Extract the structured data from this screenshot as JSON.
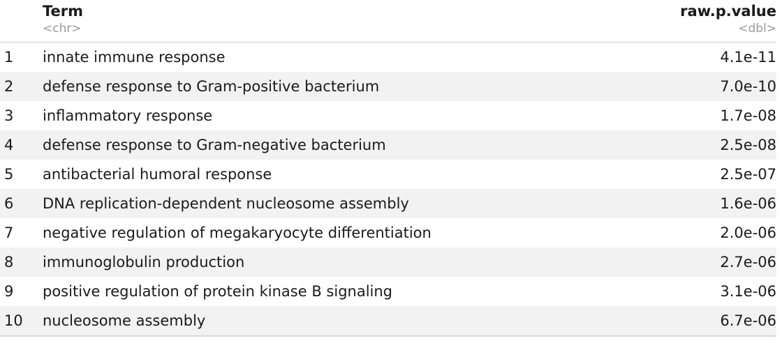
{
  "table": {
    "columns": [
      {
        "name": "Term",
        "type": "<chr>"
      },
      {
        "name": "raw.p.value",
        "type": "<dbl>"
      }
    ],
    "rows": [
      {
        "index": "1",
        "term": "innate immune response",
        "p": "4.1e-11"
      },
      {
        "index": "2",
        "term": "defense response to Gram-positive bacterium",
        "p": "7.0e-10"
      },
      {
        "index": "3",
        "term": "inflammatory response",
        "p": "1.7e-08"
      },
      {
        "index": "4",
        "term": "defense response to Gram-negative bacterium",
        "p": "2.5e-08"
      },
      {
        "index": "5",
        "term": "antibacterial humoral response",
        "p": "2.5e-07"
      },
      {
        "index": "6",
        "term": "DNA replication-dependent nucleosome assembly",
        "p": "1.6e-06"
      },
      {
        "index": "7",
        "term": "negative regulation of megakaryocyte differentiation",
        "p": "2.0e-06"
      },
      {
        "index": "8",
        "term": "immunoglobulin production",
        "p": "2.7e-06"
      },
      {
        "index": "9",
        "term": "positive regulation of protein kinase B signaling",
        "p": "3.1e-06"
      },
      {
        "index": "10",
        "term": "nucleosome assembly",
        "p": "6.7e-06"
      }
    ]
  },
  "colors": {
    "row_shade": "#f2f2f2",
    "header_type_text": "#9a9a9a"
  }
}
